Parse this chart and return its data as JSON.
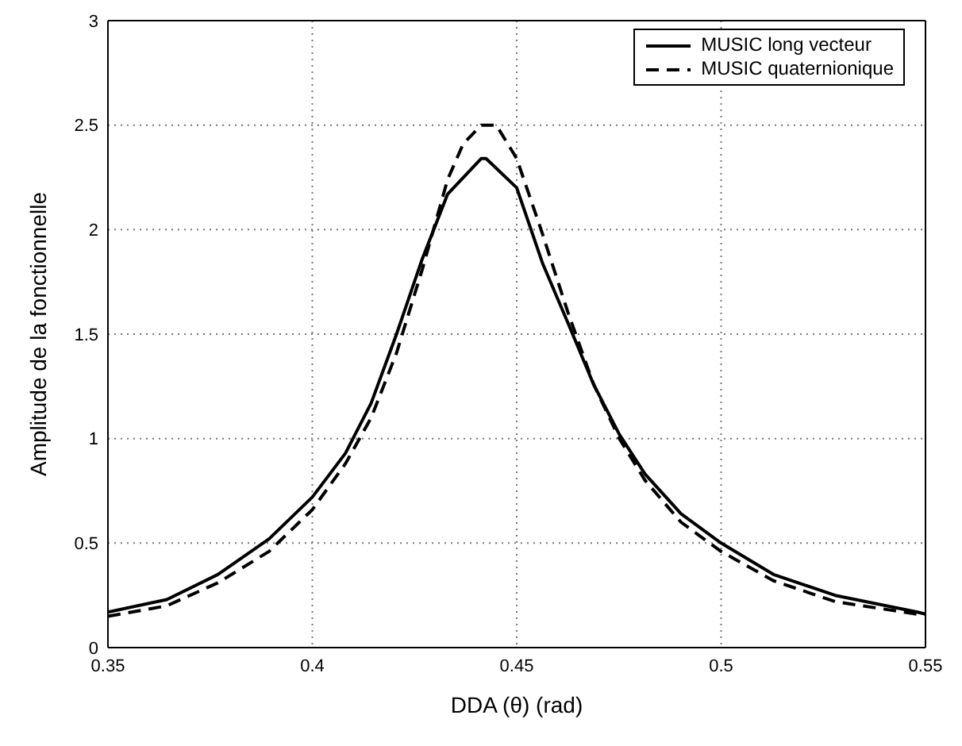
{
  "chart_data": {
    "type": "line",
    "xlabel": "DDA (θ) (rad)",
    "ylabel": "Amplitude de la fonctionnelle",
    "xlim": [
      0.35,
      0.55
    ],
    "xticks": [
      0.35,
      0.4,
      0.45,
      0.5,
      0.55
    ],
    "ylim": [
      0,
      3
    ],
    "yticks": [
      0,
      0.5,
      1,
      1.5,
      2,
      2.5,
      3
    ],
    "grid": true,
    "legend": "top right",
    "series": [
      {
        "name": "MUSIC long vecteur",
        "color": "#000000",
        "line_style": "solid",
        "x": [
          0.35,
          0.3644,
          0.3769,
          0.3894,
          0.4,
          0.4081,
          0.4144,
          0.4206,
          0.4269,
          0.4331,
          0.4413,
          0.4425,
          0.45,
          0.4563,
          0.4626,
          0.4688,
          0.4751,
          0.4814,
          0.4902,
          0.5,
          0.5128,
          0.5279,
          0.548,
          0.55
        ],
        "values": [
          0.17,
          0.23,
          0.35,
          0.52,
          0.72,
          0.93,
          1.17,
          1.5,
          1.86,
          2.17,
          2.34,
          2.34,
          2.2,
          1.84,
          1.55,
          1.26,
          1.02,
          0.83,
          0.64,
          0.5,
          0.35,
          0.25,
          0.17,
          0.16
        ]
      },
      {
        "name": "MUSIC quaternionique",
        "color": "#000000",
        "line_style": "dashed",
        "x": [
          0.35,
          0.3644,
          0.3769,
          0.3894,
          0.4,
          0.4081,
          0.4144,
          0.4206,
          0.4269,
          0.4331,
          0.4369,
          0.4413,
          0.445,
          0.45,
          0.4563,
          0.4626,
          0.4688,
          0.4751,
          0.4814,
          0.4902,
          0.5,
          0.5128,
          0.5279,
          0.548,
          0.55
        ],
        "values": [
          0.15,
          0.2,
          0.31,
          0.46,
          0.66,
          0.88,
          1.1,
          1.41,
          1.81,
          2.24,
          2.41,
          2.5,
          2.5,
          2.34,
          1.98,
          1.6,
          1.26,
          1.0,
          0.8,
          0.6,
          0.46,
          0.32,
          0.22,
          0.16,
          0.16
        ]
      }
    ]
  }
}
